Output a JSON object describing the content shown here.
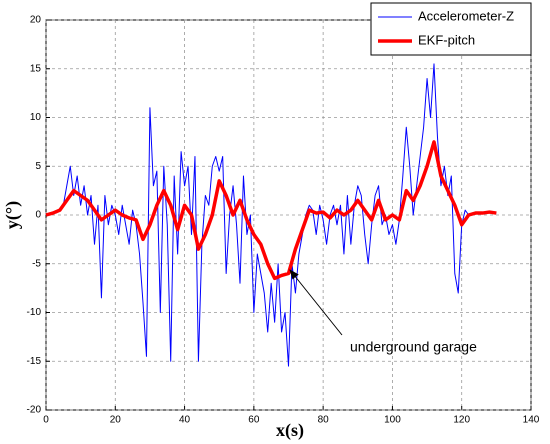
{
  "chart_data": {
    "type": "line",
    "xlabel": "x(s)",
    "ylabel": "y(°)",
    "annotation": "underground garage",
    "xlim": [
      0,
      140
    ],
    "xticks": [
      0,
      20,
      40,
      60,
      80,
      100,
      120,
      140
    ],
    "ylim": [
      -20,
      20
    ],
    "yticks": [
      -20,
      -15,
      -10,
      -5,
      0,
      5,
      10,
      15,
      20
    ],
    "grid": true,
    "legend": "upper right",
    "series": [
      {
        "name": "Accelerometer-Z",
        "color": "#0000ff",
        "width": 1,
        "x": [
          0,
          1,
          2,
          3,
          4,
          5,
          6,
          7,
          8,
          9,
          10,
          11,
          12,
          13,
          14,
          15,
          16,
          17,
          18,
          19,
          20,
          21,
          22,
          23,
          24,
          25,
          26,
          27,
          28,
          29,
          30,
          31,
          32,
          33,
          34,
          35,
          36,
          37,
          38,
          39,
          40,
          41,
          42,
          43,
          44,
          45,
          46,
          47,
          48,
          49,
          50,
          51,
          52,
          53,
          54,
          55,
          56,
          57,
          58,
          59,
          60,
          61,
          62,
          63,
          64,
          65,
          66,
          67,
          68,
          69,
          70,
          71,
          72,
          73,
          74,
          75,
          76,
          77,
          78,
          79,
          80,
          81,
          82,
          83,
          84,
          85,
          86,
          87,
          88,
          89,
          90,
          91,
          92,
          93,
          94,
          95,
          96,
          97,
          98,
          99,
          100,
          101,
          102,
          103,
          104,
          105,
          106,
          107,
          108,
          109,
          110,
          111,
          112,
          113,
          114,
          115,
          116,
          117,
          118,
          119,
          120,
          121,
          122,
          123,
          124,
          125,
          126,
          127,
          128,
          129,
          130
        ],
        "values": [
          0,
          0.2,
          0.3,
          0.2,
          0.5,
          1,
          3,
          5,
          2,
          4,
          1,
          3,
          0,
          2,
          -3,
          1,
          -8.5,
          2,
          -1,
          1,
          0,
          -2,
          1,
          -1,
          -3,
          0.5,
          -1,
          -4,
          -9,
          -14.5,
          11,
          3,
          4.5,
          -10,
          5,
          -1,
          -15,
          4,
          -4,
          6.5,
          3,
          5,
          -2,
          6,
          -15,
          -3,
          2,
          1,
          5,
          6,
          4.5,
          6,
          -6,
          0,
          3,
          -1,
          -7,
          4,
          -2,
          0,
          -10,
          -4,
          -6,
          -8,
          -12,
          -7,
          -11,
          -5,
          -12,
          -10,
          -15.5,
          -5,
          -8,
          -4,
          -2,
          0,
          1,
          0.5,
          -2,
          1,
          -0.5,
          -3,
          0,
          1,
          -1,
          1,
          -4,
          2,
          -3,
          1,
          3,
          2,
          -2,
          -5,
          -1,
          2,
          3,
          -1,
          0,
          -2,
          -1,
          -3,
          -0.5,
          4,
          9,
          5,
          0,
          3,
          6,
          9,
          14,
          10,
          15.5,
          8,
          3,
          5,
          2,
          4,
          -6,
          -8,
          -1,
          0.5,
          0,
          0.2,
          0.1,
          0.3,
          0.2,
          0.2,
          0.3,
          0.2,
          0.2
        ]
      },
      {
        "name": "EKF-pitch",
        "color": "#ff0000",
        "width": 3.5,
        "x": [
          0,
          2,
          4,
          6,
          8,
          10,
          12,
          14,
          16,
          18,
          20,
          22,
          24,
          26,
          28,
          30,
          32,
          34,
          36,
          38,
          40,
          42,
          44,
          46,
          48,
          50,
          52,
          54,
          56,
          58,
          60,
          62,
          64,
          66,
          68,
          70,
          72,
          74,
          76,
          78,
          80,
          82,
          84,
          86,
          88,
          90,
          92,
          94,
          96,
          98,
          100,
          102,
          104,
          106,
          108,
          110,
          112,
          114,
          116,
          118,
          120,
          122,
          124,
          126,
          128,
          130
        ],
        "values": [
          0,
          0.2,
          0.5,
          1.5,
          2.5,
          2,
          1.5,
          0.5,
          -0.5,
          0,
          0.5,
          0,
          -0.3,
          -0.5,
          -2.5,
          -1,
          1,
          2.5,
          1,
          -1.5,
          1,
          0,
          -3.5,
          -2,
          0,
          3.5,
          2,
          0,
          1.5,
          -0.5,
          -2,
          -3,
          -5,
          -6.5,
          -6.2,
          -6,
          -3.5,
          -1.5,
          0.5,
          0.2,
          0.3,
          -0.3,
          0.5,
          0,
          0.5,
          1.5,
          0.5,
          -0.5,
          1.5,
          -0.5,
          0,
          -0.5,
          2.5,
          1.5,
          3,
          5,
          7.5,
          4,
          2.5,
          1,
          -1,
          0,
          0.2,
          0.2,
          0.3,
          0.2
        ]
      }
    ]
  }
}
